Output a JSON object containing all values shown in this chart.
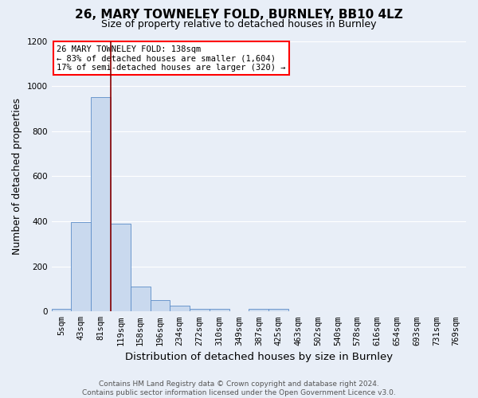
{
  "title": "26, MARY TOWNELEY FOLD, BURNLEY, BB10 4LZ",
  "subtitle": "Size of property relative to detached houses in Burnley",
  "xlabel": "Distribution of detached houses by size in Burnley",
  "ylabel": "Number of detached properties",
  "footer_line1": "Contains HM Land Registry data © Crown copyright and database right 2024.",
  "footer_line2": "Contains public sector information licensed under the Open Government Licence v3.0.",
  "bin_labels": [
    "5sqm",
    "43sqm",
    "81sqm",
    "119sqm",
    "158sqm",
    "196sqm",
    "234sqm",
    "272sqm",
    "310sqm",
    "349sqm",
    "387sqm",
    "425sqm",
    "463sqm",
    "502sqm",
    "540sqm",
    "578sqm",
    "616sqm",
    "654sqm",
    "693sqm",
    "731sqm",
    "769sqm"
  ],
  "bar_heights": [
    10,
    395,
    950,
    390,
    110,
    50,
    27,
    12,
    10,
    0,
    12,
    10,
    0,
    0,
    0,
    0,
    0,
    0,
    0,
    0,
    0
  ],
  "bar_color": "#c9d9ee",
  "bar_edge_color": "#5b8cc8",
  "red_line_bin_idx": 2.5,
  "red_line_color": "#8b0000",
  "annotation_text": "26 MARY TOWNELEY FOLD: 138sqm\n← 83% of detached houses are smaller (1,604)\n17% of semi-detached houses are larger (320) →",
  "annotation_box_color": "white",
  "annotation_box_edge_color": "red",
  "ylim": [
    0,
    1200
  ],
  "yticks": [
    0,
    200,
    400,
    600,
    800,
    1000,
    1200
  ],
  "background_color": "#e8eef7",
  "grid_color": "white",
  "title_fontsize": 11,
  "subtitle_fontsize": 9,
  "axis_label_fontsize": 9,
  "tick_label_fontsize": 7.5,
  "footer_fontsize": 6.5,
  "annotation_fontsize": 7.5
}
